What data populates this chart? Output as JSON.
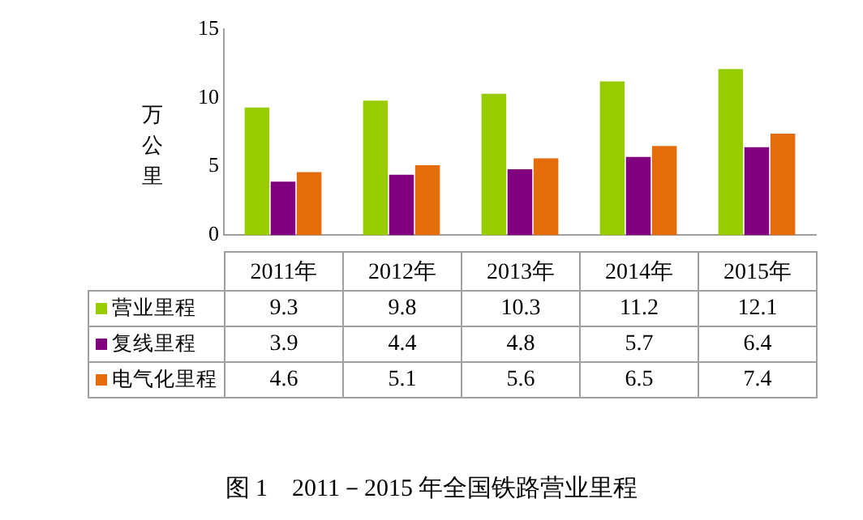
{
  "chart_data": {
    "type": "bar",
    "title": "图 1　2011－2015 年全国铁路营业里程",
    "ylabel": "万公里",
    "categories": [
      "2011年",
      "2012年",
      "2013年",
      "2014年",
      "2015年"
    ],
    "series": [
      {
        "name": "营业里程",
        "color": "#99cc00",
        "values": [
          9.3,
          9.8,
          10.3,
          11.2,
          12.1
        ]
      },
      {
        "name": "复线里程",
        "color": "#800080",
        "values": [
          3.9,
          4.4,
          4.8,
          5.7,
          6.4
        ]
      },
      {
        "name": "电气化里程",
        "color": "#e46c0a",
        "values": [
          4.6,
          5.1,
          5.6,
          6.5,
          7.4
        ]
      }
    ],
    "ylim": [
      0,
      15
    ],
    "yticks": [
      0,
      5,
      10,
      15
    ],
    "grid": false,
    "legend": "bottom",
    "data_labels": true
  }
}
